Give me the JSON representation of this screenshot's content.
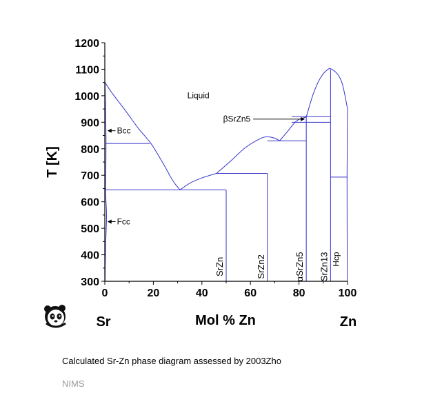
{
  "chart_data": {
    "type": "phase-diagram",
    "title": "",
    "xlabel": "Mol % Zn",
    "ylabel": "T [K]",
    "xlim": [
      0,
      100
    ],
    "ylim": [
      300,
      1200
    ],
    "xticks": [
      0,
      20,
      40,
      60,
      80,
      100
    ],
    "yticks": [
      300,
      400,
      500,
      600,
      700,
      800,
      900,
      1000,
      1100,
      1200
    ],
    "left_element": "Sr",
    "right_element": "Zn",
    "line_color": "#3333cc",
    "curves": [
      {
        "name": "liquidus-sr-side",
        "points": [
          [
            0.1,
            1050
          ],
          [
            3,
            1010
          ],
          [
            8,
            950
          ],
          [
            14,
            875
          ],
          [
            19,
            820
          ],
          [
            24,
            745
          ],
          [
            28,
            680
          ],
          [
            31,
            645
          ]
        ]
      },
      {
        "name": "liquidus-srzn",
        "points": [
          [
            31,
            645
          ],
          [
            35,
            670
          ],
          [
            40,
            690
          ],
          [
            46,
            707
          ]
        ]
      },
      {
        "name": "liquidus-srzn2",
        "points": [
          [
            46,
            707
          ],
          [
            52,
            755
          ],
          [
            58,
            805
          ],
          [
            64,
            838
          ],
          [
            67,
            845
          ],
          [
            70,
            840
          ],
          [
            72,
            830
          ]
        ]
      },
      {
        "name": "liquidus-srzn5",
        "points": [
          [
            72,
            830
          ],
          [
            75,
            862
          ],
          [
            79,
            905
          ],
          [
            83,
            920
          ]
        ]
      },
      {
        "name": "liquidus-srzn13",
        "points": [
          [
            83,
            920
          ],
          [
            86,
            1010
          ],
          [
            89,
            1070
          ],
          [
            92,
            1100
          ],
          [
            93.5,
            1100
          ],
          [
            96,
            1080
          ],
          [
            98,
            1040
          ],
          [
            100,
            950
          ]
        ]
      },
      {
        "name": "bcc-fcc-solvus",
        "points": [
          [
            0.1,
            1050
          ],
          [
            0.4,
            900
          ],
          [
            0.5,
            820
          ],
          [
            0.4,
            700
          ],
          [
            0.3,
            640
          ],
          [
            0.5,
            600
          ],
          [
            0.7,
            540
          ],
          [
            0.3,
            420
          ],
          [
            0.1,
            300
          ]
        ]
      },
      {
        "name": "hcp-solvus",
        "points": [
          [
            100,
            950
          ],
          [
            99.8,
            700
          ],
          [
            99.9,
            300
          ]
        ]
      }
    ],
    "horizontals": [
      {
        "name": "bcc-eutectoid",
        "x": [
          0.5,
          18.5
        ],
        "y": 820
      },
      {
        "name": "eutectic-sr-srzn",
        "x": [
          0,
          50
        ],
        "y": 645
      },
      {
        "name": "peritectic-srzn",
        "x": [
          46,
          67
        ],
        "y": 707
      },
      {
        "name": "eutectic-srzn2-srzn5",
        "x": [
          67,
          83
        ],
        "y": 830
      },
      {
        "name": "peritectic-srzn5",
        "x": [
          77,
          93
        ],
        "y": 922
      },
      {
        "name": "srzn5-transition",
        "x": [
          77,
          93
        ],
        "y": 900
      },
      {
        "name": "hcp-eutectic",
        "x": [
          93,
          100
        ],
        "y": 693
      }
    ],
    "compounds": [
      {
        "label": "SrZn",
        "x": 50,
        "ytop": 645
      },
      {
        "label": "SrZn2",
        "x": 67,
        "ytop": 707
      },
      {
        "label": "αSrZn5",
        "x": 83,
        "ytop": 922
      },
      {
        "label": "SrZn13",
        "x": 93,
        "ytop": 1100
      }
    ],
    "annotations": [
      {
        "label": "Liquid",
        "x": 34,
        "y": 990
      },
      {
        "label": "Bcc",
        "x": 5,
        "y": 868,
        "arrow_to": [
          0.5,
          868
        ]
      },
      {
        "label": "Fcc",
        "x": 5,
        "y": 525,
        "arrow_to": [
          0.5,
          525
        ]
      },
      {
        "label": "βSrZn5",
        "x": 60,
        "y": 912,
        "arrow_to": [
          83,
          912
        ]
      },
      {
        "label": "Hcp",
        "x": 96.5,
        "y": 370
      }
    ]
  },
  "caption": "Calculated Sr-Zn phase diagram assessed by 2003Zho",
  "source": "NIMS",
  "logo": "panda-icon"
}
